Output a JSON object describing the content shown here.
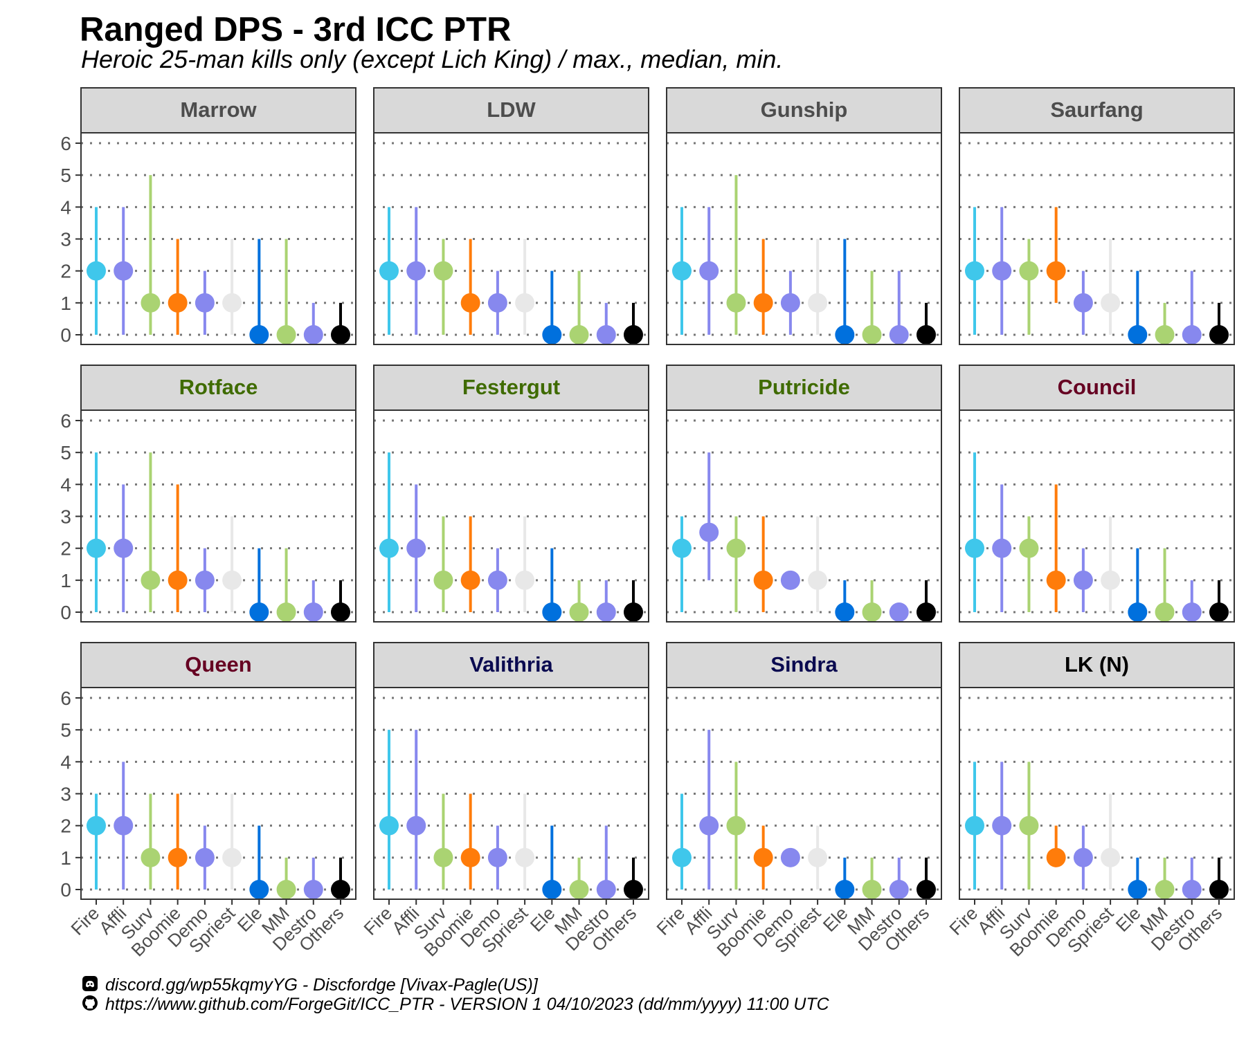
{
  "title": "Ranged DPS - 3rd ICC PTR",
  "subtitle": "Heroic 25-man kills only (except Lich King) / max., median, min.",
  "footer": {
    "discord_text": "discord.gg/wp55kqmyYG - Discfordge [Vivax-Pagle(US)]",
    "github_text": "https://www.github.com/ForgeGit/ICC_PTR - VERSION 1 04/10/2023 (dd/mm/yyyy) 11:00 UTC",
    "discord_icon": "discord-icon",
    "github_icon": "github-icon"
  },
  "chart_data": {
    "type": "dot-range",
    "y_ticks": [
      "0",
      "1",
      "2",
      "3",
      "4",
      "5",
      "6"
    ],
    "ylim": [
      0,
      6
    ],
    "grid": "horizontal dotted",
    "categories": [
      "Fire",
      "Affli",
      "Surv",
      "Boomie",
      "Demo",
      "Spriest",
      "Ele",
      "MM",
      "Destro",
      "Others"
    ],
    "category_colors": [
      "#3fc7eb",
      "#8788ee",
      "#aad372",
      "#ff7c0a",
      "#8788ee",
      "#e8e8e8",
      "#0070dd",
      "#aad372",
      "#8788ee",
      "#000000"
    ],
    "panels": [
      {
        "name": "Marrow",
        "strip_color": "#4d4d4d",
        "max": [
          4,
          4,
          5,
          3,
          2,
          3,
          3,
          3,
          1,
          1
        ],
        "median": [
          2,
          2,
          1,
          1,
          1,
          1,
          0,
          0,
          0,
          0
        ],
        "min": [
          0,
          0,
          0,
          0,
          0,
          0,
          0,
          0,
          0,
          0
        ]
      },
      {
        "name": "LDW",
        "strip_color": "#4d4d4d",
        "max": [
          4,
          4,
          3,
          3,
          2,
          3,
          2,
          2,
          1,
          1
        ],
        "median": [
          2,
          2,
          2,
          1,
          1,
          1,
          0,
          0,
          0,
          0
        ],
        "min": [
          0,
          0,
          0,
          0,
          0,
          0,
          0,
          0,
          0,
          0
        ]
      },
      {
        "name": "Gunship",
        "strip_color": "#4d4d4d",
        "max": [
          4,
          4,
          5,
          3,
          2,
          3,
          3,
          2,
          2,
          1
        ],
        "median": [
          2,
          2,
          1,
          1,
          1,
          1,
          0,
          0,
          0,
          0
        ],
        "min": [
          0,
          0,
          0,
          0,
          0,
          0,
          0,
          0,
          0,
          0
        ]
      },
      {
        "name": "Saurfang",
        "strip_color": "#4d4d4d",
        "max": [
          4,
          4,
          3,
          4,
          2,
          3,
          2,
          1,
          2,
          1
        ],
        "median": [
          2,
          2,
          2,
          2,
          1,
          1,
          0,
          0,
          0,
          0
        ],
        "min": [
          0,
          0,
          0,
          1,
          0,
          0,
          0,
          0,
          0,
          0
        ]
      },
      {
        "name": "Rotface",
        "strip_color": "#3f6b00",
        "max": [
          5,
          4,
          5,
          4,
          2,
          3,
          2,
          2,
          1,
          1
        ],
        "median": [
          2,
          2,
          1,
          1,
          1,
          1,
          0,
          0,
          0,
          0
        ],
        "min": [
          0,
          0,
          0,
          0,
          0,
          0,
          0,
          0,
          0,
          0
        ]
      },
      {
        "name": "Festergut",
        "strip_color": "#3f6b00",
        "max": [
          5,
          4,
          3,
          3,
          2,
          3,
          2,
          1,
          1,
          1
        ],
        "median": [
          2,
          2,
          1,
          1,
          1,
          1,
          0,
          0,
          0,
          0
        ],
        "min": [
          0,
          0,
          0,
          0,
          0,
          0,
          0,
          0,
          0,
          0
        ]
      },
      {
        "name": "Putricide",
        "strip_color": "#3f6b00",
        "max": [
          3,
          5,
          3,
          3,
          1,
          3,
          1,
          1,
          0,
          1
        ],
        "median": [
          2,
          2.5,
          2,
          1,
          1,
          1,
          0,
          0,
          0,
          0
        ],
        "min": [
          0,
          1,
          0,
          0,
          1,
          0,
          0,
          0,
          0,
          0
        ]
      },
      {
        "name": "Council",
        "strip_color": "#660022",
        "max": [
          5,
          4,
          3,
          4,
          2,
          3,
          2,
          2,
          1,
          1
        ],
        "median": [
          2,
          2,
          2,
          1,
          1,
          1,
          0,
          0,
          0,
          0
        ],
        "min": [
          0,
          0,
          0,
          0,
          0,
          0,
          0,
          0,
          0,
          0
        ]
      },
      {
        "name": "Queen",
        "strip_color": "#660022",
        "max": [
          3,
          4,
          3,
          3,
          2,
          3,
          2,
          1,
          1,
          1
        ],
        "median": [
          2,
          2,
          1,
          1,
          1,
          1,
          0,
          0,
          0,
          0
        ],
        "min": [
          0,
          0,
          0,
          0,
          0,
          0,
          0,
          0,
          0,
          0
        ]
      },
      {
        "name": "Valithria",
        "strip_color": "#0a0a50",
        "max": [
          5,
          5,
          3,
          3,
          2,
          3,
          2,
          1,
          2,
          1
        ],
        "median": [
          2,
          2,
          1,
          1,
          1,
          1,
          0,
          0,
          0,
          0
        ],
        "min": [
          0,
          0,
          0,
          0,
          0,
          0,
          0,
          0,
          0,
          0
        ]
      },
      {
        "name": "Sindra",
        "strip_color": "#0a0a50",
        "max": [
          3,
          5,
          4,
          2,
          1,
          2,
          1,
          1,
          1,
          1
        ],
        "median": [
          1,
          2,
          2,
          1,
          1,
          1,
          0,
          0,
          0,
          0
        ],
        "min": [
          0,
          0,
          0,
          0,
          1,
          0,
          0,
          0,
          0,
          0
        ]
      },
      {
        "name": "LK (N)",
        "strip_color": "#000000",
        "max": [
          4,
          4,
          4,
          2,
          2,
          3,
          1,
          1,
          1,
          1
        ],
        "median": [
          2,
          2,
          2,
          1,
          1,
          1,
          0,
          0,
          0,
          0
        ],
        "min": [
          0,
          0,
          0,
          1,
          0,
          0,
          0,
          0,
          0,
          0
        ]
      }
    ]
  }
}
